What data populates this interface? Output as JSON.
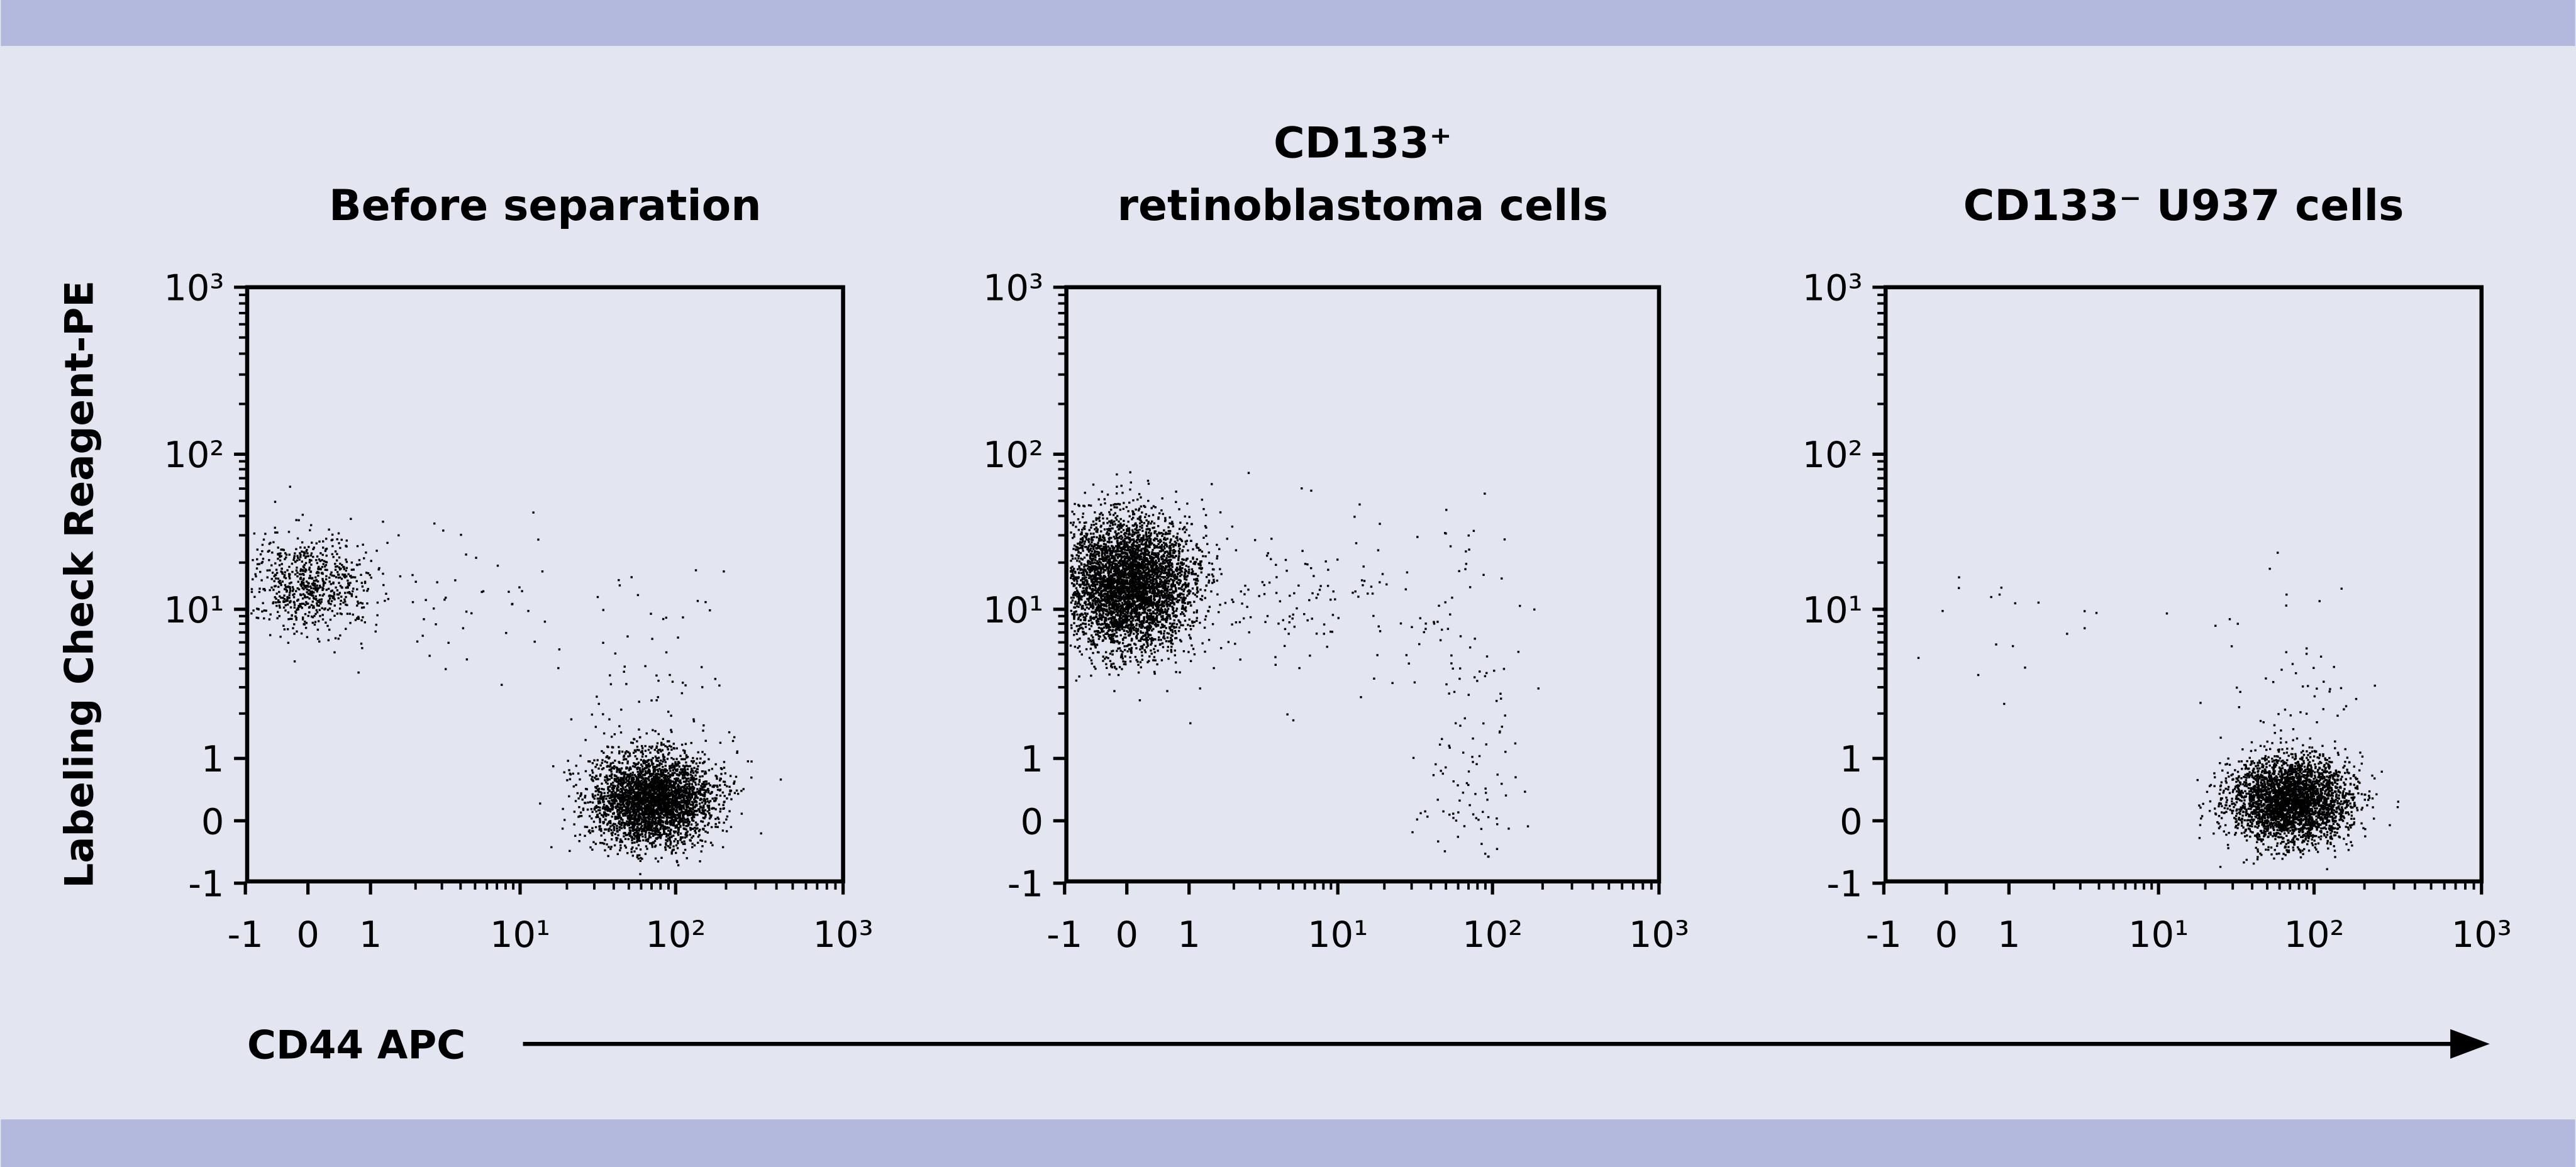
{
  "colors": {
    "band": "#b3b9dc",
    "background": "#e3e6f1",
    "ink": "#000000"
  },
  "y_axis_label": "Labeling Check Reagent-PE",
  "x_axis_label": "CD44 APC",
  "chart_data": [
    {
      "type": "scatter",
      "title": [
        "Before separation"
      ],
      "x_ticks": [
        -1,
        0,
        1,
        10,
        100,
        1000
      ],
      "y_ticks": [
        -1,
        0,
        1,
        10,
        100,
        1000
      ],
      "tick_labels": [
        "-1",
        "0",
        "1",
        "10¹",
        "10²",
        "10³"
      ],
      "xlim": [
        -1,
        1000
      ],
      "ylim": [
        -1,
        1000
      ],
      "scale": "biexponential",
      "populations": [
        {
          "x": 0,
          "y": 15,
          "sx_dec": 0.22,
          "sy_dec": 0.16,
          "n": 700
        },
        {
          "x": 70,
          "y": 0.35,
          "sx_dec": 0.2,
          "sy_dec": 0.15,
          "n": 3200
        },
        {
          "x": 3,
          "y": 12,
          "sx_dec": 0.5,
          "sy_dec": 0.3,
          "n": 60
        },
        {
          "x": 70,
          "y": 1.5,
          "sx_dec": 0.3,
          "sy_dec": 0.5,
          "n": 120
        }
      ]
    },
    {
      "type": "scatter",
      "title": [
        "CD133⁺",
        "retinoblastoma cells"
      ],
      "x_ticks": [
        -1,
        0,
        1,
        10,
        100,
        1000
      ],
      "y_ticks": [
        -1,
        0,
        1,
        10,
        100,
        1000
      ],
      "tick_labels": [
        "-1",
        "0",
        "1",
        "10¹",
        "10²",
        "10³"
      ],
      "xlim": [
        -1,
        1000
      ],
      "ylim": [
        -1,
        1000
      ],
      "scale": "biexponential",
      "populations": [
        {
          "x": 0,
          "y": 15,
          "sx_dec": 0.22,
          "sy_dec": 0.22,
          "n": 4500
        },
        {
          "x": 4,
          "y": 12,
          "sx_dec": 0.5,
          "sy_dec": 0.3,
          "n": 150
        },
        {
          "x": 70,
          "y": 5,
          "sx_dec": 0.18,
          "sy_dec": 0.45,
          "n": 70
        },
        {
          "x": 70,
          "y": 0.5,
          "sx_dec": 0.18,
          "sy_dec": 0.2,
          "n": 60
        }
      ]
    },
    {
      "type": "scatter",
      "title": [
        "CD133⁻ U937 cells"
      ],
      "x_ticks": [
        -1,
        0,
        1,
        10,
        100,
        1000
      ],
      "y_ticks": [
        -1,
        0,
        1,
        10,
        100,
        1000
      ],
      "tick_labels": [
        "-1",
        "0",
        "1",
        "10¹",
        "10²",
        "10³"
      ],
      "xlim": [
        -1,
        1000
      ],
      "ylim": [
        -1,
        1000
      ],
      "scale": "biexponential",
      "populations": [
        {
          "x": 70,
          "y": 0.35,
          "sx_dec": 0.2,
          "sy_dec": 0.14,
          "n": 3200
        },
        {
          "x": 70,
          "y": 2,
          "sx_dec": 0.25,
          "sy_dec": 0.45,
          "n": 70
        },
        {
          "x": 0.5,
          "y": 8,
          "sx_dec": 0.4,
          "sy_dec": 0.25,
          "n": 20
        }
      ]
    }
  ]
}
